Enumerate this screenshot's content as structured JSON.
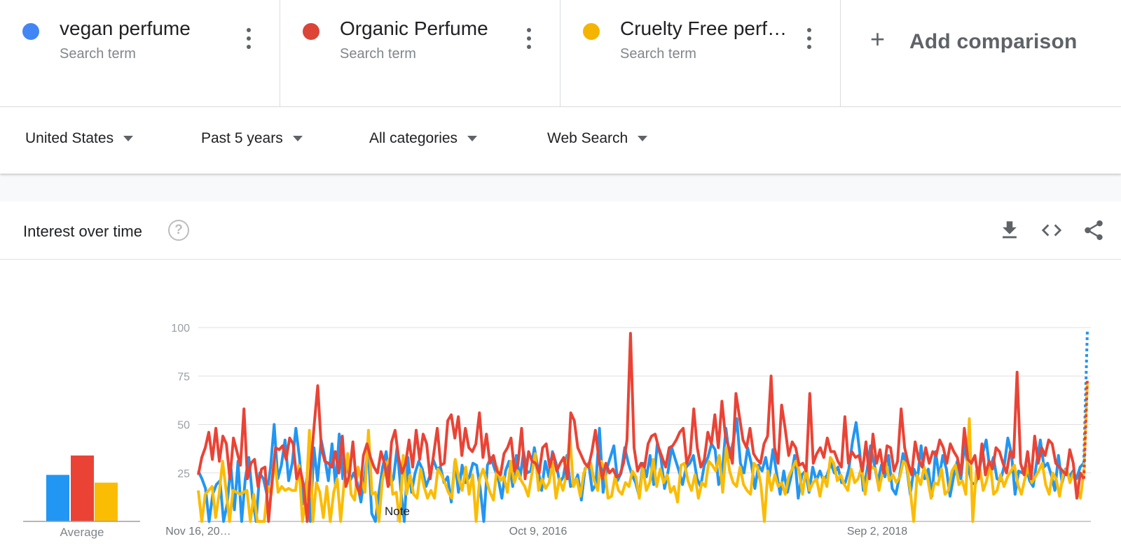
{
  "terms": [
    {
      "name": "vegan perfume",
      "sub": "Search term",
      "color": "#4285f4"
    },
    {
      "name": "Organic Perfume",
      "sub": "Search term",
      "color": "#db4437"
    },
    {
      "name": "Cruelty Free perf…",
      "sub": "Search term",
      "color": "#f4b400"
    }
  ],
  "add_comparison": "Add comparison",
  "filters": {
    "region": "United States",
    "time": "Past 5 years",
    "category": "All categories",
    "search_type": "Web Search"
  },
  "card": {
    "title": "Interest over time",
    "help": "?"
  },
  "icons": {
    "help": "help-circle-icon",
    "download": "download-icon",
    "embed": "code-icon",
    "share": "share-icon"
  },
  "chart_data": {
    "type": "line",
    "ylim": [
      0,
      100
    ],
    "yticks": [
      25,
      50,
      75,
      100
    ],
    "xtick_labels": [
      "Nov 16, 20…",
      "Oct 9, 2016",
      "Sep 2, 2018"
    ],
    "note": "Note",
    "average_label": "Average",
    "grid": true,
    "series": [
      {
        "name": "vegan perfume",
        "color": "#2196f3",
        "average": 24,
        "values": [
          26,
          22,
          17,
          0,
          14,
          19,
          21,
          0,
          9,
          29,
          6,
          31,
          0,
          22,
          33,
          12,
          0,
          25,
          22,
          14,
          28,
          50,
          22,
          29,
          42,
          21,
          30,
          48,
          33,
          9,
          22,
          0,
          38,
          21,
          42,
          33,
          21,
          40,
          18,
          45,
          22,
          30,
          21,
          25,
          20,
          10,
          23,
          38,
          4,
          0,
          15,
          28,
          36,
          19,
          22,
          38,
          17,
          0,
          33,
          15,
          25,
          31,
          27,
          18,
          23,
          32,
          27,
          28,
          20,
          23,
          10,
          31,
          15,
          29,
          20,
          23,
          30,
          29,
          17,
          0,
          29,
          33,
          27,
          22,
          12,
          26,
          31,
          18,
          34,
          22,
          36,
          25,
          26,
          38,
          27,
          16,
          31,
          23,
          36,
          30,
          20,
          23,
          34,
          18,
          19,
          24,
          11,
          27,
          30,
          16,
          19,
          48,
          15,
          27,
          33,
          39,
          21,
          25,
          38,
          30,
          24,
          20,
          13,
          30,
          23,
          34,
          19,
          40,
          33,
          17,
          26,
          38,
          32,
          26,
          19,
          28,
          30,
          34,
          22,
          18,
          29,
          33,
          40,
          37,
          19,
          26,
          48,
          33,
          41,
          53,
          30,
          25,
          38,
          30,
          17,
          29,
          26,
          33,
          23,
          37,
          25,
          14,
          26,
          15,
          23,
          34,
          12,
          24,
          26,
          15,
          28,
          21,
          26,
          21,
          24,
          30,
          25,
          28,
          20,
          20,
          27,
          41,
          51,
          36,
          16,
          26,
          39,
          30,
          20,
          29,
          23,
          34,
          17,
          14,
          23,
          35,
          28,
          14,
          27,
          22,
          39,
          22,
          27,
          13,
          36,
          23,
          34,
          27,
          13,
          23,
          31,
          22,
          40,
          28,
          20,
          19,
          26,
          35,
          42,
          27,
          33,
          22,
          21,
          29,
          43,
          35,
          14,
          26,
          25,
          29,
          21,
          18,
          31,
          42,
          28,
          30,
          24,
          16,
          34,
          20,
          27,
          23,
          26,
          22,
          28,
          30,
          99
        ]
      },
      {
        "name": "Organic Perfume",
        "color": "#ea4335",
        "average": 34,
        "values": [
          24,
          33,
          38,
          46,
          32,
          48,
          31,
          44,
          40,
          22,
          43,
          36,
          29,
          58,
          22,
          30,
          32,
          18,
          27,
          28,
          0,
          21,
          38,
          37,
          39,
          32,
          43,
          40,
          22,
          27,
          18,
          0,
          28,
          50,
          70,
          38,
          31,
          30,
          28,
          36,
          25,
          44,
          18,
          24,
          41,
          19,
          14,
          34,
          40,
          33,
          28,
          25,
          36,
          30,
          18,
          41,
          47,
          33,
          25,
          30,
          42,
          28,
          47,
          32,
          45,
          40,
          22,
          35,
          48,
          29,
          30,
          52,
          55,
          43,
          54,
          34,
          48,
          38,
          36,
          40,
          56,
          33,
          45,
          30,
          34,
          26,
          24,
          35,
          38,
          43,
          26,
          30,
          48,
          22,
          36,
          31,
          30,
          25,
          38,
          40,
          28,
          35,
          26,
          30,
          33,
          22,
          56,
          52,
          38,
          34,
          30,
          28,
          36,
          47,
          32,
          22,
          30,
          25,
          27,
          23,
          24,
          30,
          42,
          97,
          38,
          26,
          30,
          28,
          40,
          44,
          45,
          38,
          33,
          28,
          38,
          39,
          42,
          46,
          48,
          30,
          35,
          58,
          38,
          28,
          32,
          46,
          40,
          55,
          38,
          62,
          44,
          38,
          30,
          66,
          54,
          42,
          38,
          48,
          35,
          32,
          30,
          40,
          44,
          75,
          38,
          30,
          60,
          48,
          34,
          41,
          38,
          29,
          30,
          26,
          66,
          30,
          35,
          38,
          33,
          43,
          36,
          36,
          31,
          28,
          54,
          30,
          36,
          33,
          34,
          26,
          41,
          22,
          45,
          30,
          37,
          25,
          39,
          38,
          26,
          31,
          58,
          38,
          30,
          24,
          41,
          32,
          28,
          38,
          30,
          36,
          34,
          42,
          38,
          30,
          40,
          36,
          33,
          24,
          48,
          32,
          30,
          34,
          22,
          40,
          24,
          31,
          27,
          38,
          36,
          30,
          25,
          36,
          33,
          77,
          30,
          24,
          36,
          22,
          44,
          30,
          38,
          34,
          42,
          40,
          30,
          28,
          26,
          24,
          37,
          30,
          12,
          25,
          22,
          74
        ]
      },
      {
        "name": "Cruelty Free perfume",
        "color": "#fbbc04",
        "average": 20,
        "values": [
          16,
          0,
          14,
          16,
          18,
          2,
          14,
          31,
          16,
          0,
          16,
          15,
          14,
          15,
          16,
          0,
          14,
          0,
          0,
          0,
          18,
          14,
          32,
          15,
          18,
          16,
          17,
          16,
          16,
          29,
          0,
          12,
          47,
          0,
          20,
          15,
          2,
          18,
          0,
          15,
          22,
          0,
          20,
          35,
          14,
          11,
          28,
          21,
          15,
          47,
          14,
          15,
          0,
          21,
          29,
          32,
          14,
          15,
          0,
          34,
          14,
          24,
          14,
          12,
          27,
          18,
          12,
          16,
          12,
          27,
          24,
          20,
          15,
          12,
          32,
          22,
          16,
          28,
          14,
          24,
          0,
          22,
          27,
          21,
          15,
          11,
          28,
          21,
          23,
          15,
          31,
          20,
          26,
          21,
          18,
          13,
          24,
          35,
          16,
          22,
          17,
          20,
          30,
          12,
          22,
          16,
          24,
          44,
          18,
          22,
          13,
          25,
          29,
          30,
          21,
          16,
          31,
          27,
          12,
          13,
          23,
          16,
          14,
          20,
          18,
          26,
          23,
          12,
          28,
          16,
          20,
          32,
          18,
          27,
          20,
          24,
          15,
          18,
          10,
          29,
          30,
          21,
          16,
          24,
          12,
          20,
          18,
          31,
          29,
          26,
          34,
          15,
          38,
          26,
          20,
          18,
          28,
          19,
          16,
          14,
          30,
          28,
          19,
          0,
          26,
          16,
          24,
          18,
          20,
          14,
          23,
          27,
          31,
          26,
          14,
          28,
          16,
          20,
          22,
          13,
          23,
          18,
          33,
          30,
          21,
          24,
          19,
          16,
          27,
          20,
          22,
          28,
          14,
          26,
          28,
          27,
          16,
          25,
          30,
          21,
          24,
          20,
          23,
          31,
          29,
          16,
          0,
          24,
          19,
          28,
          22,
          12,
          20,
          19,
          27,
          14,
          16,
          26,
          29,
          19,
          21,
          14,
          53,
          0,
          26,
          28,
          16,
          21,
          30,
          14,
          16,
          24,
          18,
          23,
          26,
          29,
          19,
          14,
          22,
          28,
          20,
          23,
          26,
          30,
          19,
          14,
          25,
          22,
          13,
          24,
          27,
          20,
          25,
          17,
          12,
          26,
          72
        ]
      }
    ]
  }
}
